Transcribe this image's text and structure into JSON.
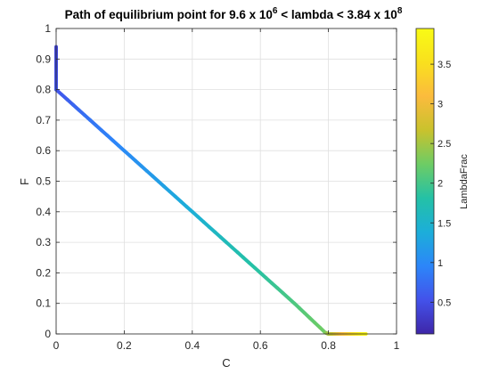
{
  "chart_data": {
    "type": "line",
    "title_parts": {
      "prefix": "Path of equilibrium point for 9.6 x 10",
      "exp1": "6",
      "middle": " < lambda < 3.84 x 10",
      "exp2": "8"
    },
    "xlabel": "C",
    "ylabel": "F",
    "xlim": [
      0,
      1
    ],
    "ylim": [
      0,
      1
    ],
    "x_ticks": [
      "0",
      "0.2",
      "0.4",
      "0.6",
      "0.8",
      "1"
    ],
    "y_ticks": [
      "0",
      "0.1",
      "0.2",
      "0.3",
      "0.4",
      "0.5",
      "0.6",
      "0.7",
      "0.8",
      "0.9",
      "1"
    ],
    "grid": true,
    "colorbar": {
      "label": "LambdaFrac",
      "range": [
        0.1,
        3.95
      ],
      "ticks": [
        "0.5",
        "1",
        "1.5",
        "2",
        "2.5",
        "3",
        "3.5"
      ],
      "colormap": [
        "#3e26a8",
        "#4352ea",
        "#2c86f9",
        "#1caed9",
        "#24c1a6",
        "#6dcc65",
        "#c9c22d",
        "#fbbb3d",
        "#f9e01e",
        "#f9fb15"
      ]
    },
    "series": [
      {
        "x": [
          0.0,
          0.0,
          0.0,
          0.0,
          0.1,
          0.2,
          0.3,
          0.4,
          0.5,
          0.6,
          0.7,
          0.79,
          0.8,
          0.85,
          0.91
        ],
        "y": [
          0.94,
          0.9,
          0.85,
          0.8,
          0.7,
          0.6,
          0.5,
          0.4,
          0.3,
          0.2,
          0.1,
          0.005,
          0.0,
          0.0,
          0.0
        ],
        "color_value": [
          0.4,
          0.45,
          0.5,
          0.55,
          0.8,
          1.0,
          1.2,
          1.4,
          1.65,
          1.85,
          2.05,
          2.25,
          2.5,
          3.2,
          3.9
        ]
      }
    ]
  }
}
